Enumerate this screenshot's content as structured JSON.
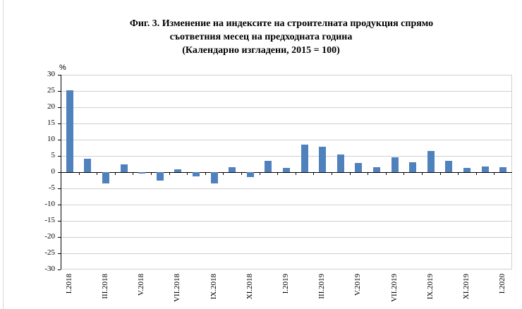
{
  "chart_data": {
    "type": "bar",
    "title": "Фиг. 3. Изменение на индексите на строителната продукция спрямо съответния месец на предходната година (Календарно изгладени, 2015 = 100)",
    "title_lines": [
      "Фиг. 3. Изменение на индексите на строителната продукция спрямо",
      "съответния месец на предходната година",
      "(Календарно изгладени, 2015 = 100)"
    ],
    "ylabel": "%",
    "xlabel": "",
    "ylim": [
      -30,
      30
    ],
    "yticks": [
      30,
      25,
      20,
      15,
      10,
      5,
      0,
      -5,
      -10,
      -15,
      -20,
      -25,
      -30
    ],
    "grid": true,
    "legend": null,
    "bar_color": "#4f81bd",
    "categories": [
      "I.2018",
      "II.2018",
      "III.2018",
      "IV.2018",
      "V.2018",
      "VI.2018",
      "VII.2018",
      "VIII.2018",
      "IX.2018",
      "X.2018",
      "XI.2018",
      "XII.2018",
      "I.2019",
      "II.2019",
      "III.2019",
      "IV.2019",
      "V.2019",
      "VI.2019",
      "VII.2019",
      "VIII.2019",
      "IX.2019",
      "X.2019",
      "XI.2019",
      "XII.2019",
      "I.2020"
    ],
    "tick_labels_shown": [
      "I.2018",
      "III.2018",
      "V.2018",
      "VII.2018",
      "IX.2018",
      "XI.2018",
      "I.2019",
      "III.2019",
      "V.2019",
      "VII.2019",
      "IX.2019",
      "XI.2019",
      "I.2020"
    ],
    "values": [
      25.3,
      4.2,
      -3.5,
      2.3,
      -0.5,
      -2.5,
      0.8,
      -1.2,
      -3.5,
      1.6,
      -1.5,
      3.5,
      1.4,
      8.4,
      7.8,
      5.4,
      2.9,
      1.5,
      4.6,
      3.1,
      6.6,
      3.5,
      1.4,
      1.8,
      1.6
    ]
  }
}
